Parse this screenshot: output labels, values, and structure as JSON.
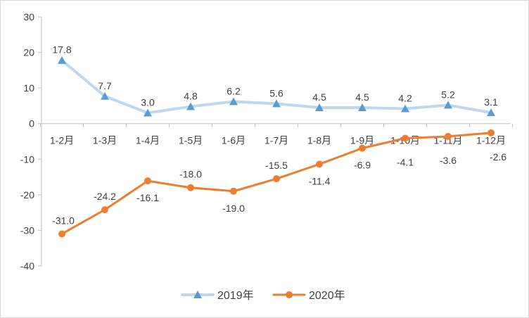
{
  "chart_data": {
    "type": "line",
    "title": "",
    "xlabel": "",
    "ylabel": "",
    "categories": [
      "1-2月",
      "1-3月",
      "1-4月",
      "1-5月",
      "1-6月",
      "1-7月",
      "1-8月",
      "1-9月",
      "1-10月",
      "1-11月",
      "1-12月"
    ],
    "ylim": [
      -40,
      30
    ],
    "yticks": [
      30,
      20,
      10,
      0,
      -10,
      -20,
      -30,
      -40
    ],
    "grid": false,
    "legend_position": "bottom",
    "series": [
      {
        "name": "2019年",
        "values": [
          17.8,
          7.7,
          3.0,
          4.8,
          6.2,
          5.6,
          4.5,
          4.5,
          4.2,
          5.2,
          3.1
        ],
        "labels": [
          "17.8",
          "7.7",
          "3.0",
          "4.8",
          "6.2",
          "5.6",
          "4.5",
          "4.5",
          "4.2",
          "5.2",
          "3.1"
        ],
        "color": "#bdd7ee",
        "marker_color": "#5b9bd5",
        "marker": "triangle"
      },
      {
        "name": "2020年",
        "values": [
          -31.0,
          -24.2,
          -16.1,
          -18.0,
          -19.0,
          -15.5,
          -11.4,
          -6.9,
          -4.1,
          -3.6,
          -2.6
        ],
        "labels": [
          "-31.0",
          "-24.2",
          "-16.1",
          "-18.0",
          "-19.0",
          "-15.5",
          "-11.4",
          "-6.9",
          "-4.1",
          "-3.6",
          "-2.6"
        ],
        "color": "#ed7d31",
        "marker_color": "#ed7d31",
        "marker": "circle"
      }
    ]
  }
}
